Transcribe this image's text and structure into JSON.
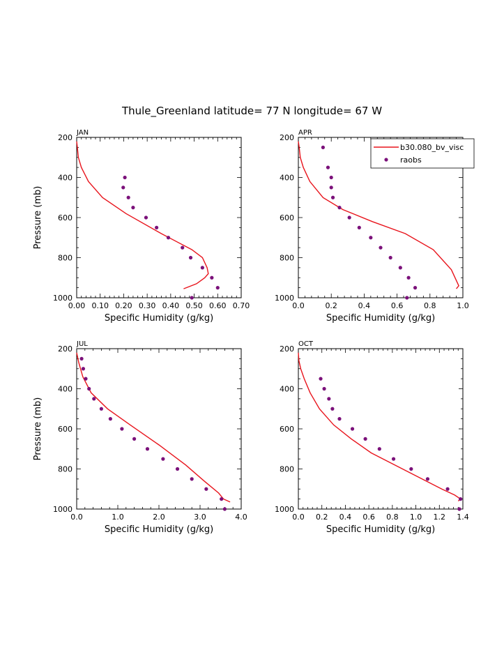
{
  "page_title": "Thule_Greenland  latitude= 77 N longitude= 67 W",
  "colors": {
    "model": "#e8141c",
    "obs": "#7b117a",
    "axis": "#000000"
  },
  "chart_data": [
    {
      "type": "line",
      "panel": "JAN",
      "title": "JAN",
      "xlabel": "Specific Humidity (g/kg)",
      "ylabel": "Pressure (mb)",
      "xlim": [
        0,
        0.7
      ],
      "ylim": [
        1000,
        200
      ],
      "xticks": [
        0,
        0.1,
        0.2,
        0.3,
        0.4,
        0.5,
        0.6,
        0.7
      ],
      "xtick_labels": [
        "0.00",
        "0.10",
        "0.20",
        "0.30",
        "0.40",
        "0.50",
        "0.60",
        "0.70"
      ],
      "yticks": [
        200,
        400,
        600,
        800,
        1000
      ],
      "ytick_labels": [
        "200",
        "400",
        "600",
        "800",
        "1000"
      ],
      "series": [
        {
          "name": "b30.080_bv_visc",
          "kind": "line",
          "x": [
            0.0,
            0.003,
            0.007,
            0.02,
            0.05,
            0.11,
            0.21,
            0.36,
            0.49,
            0.535,
            0.555,
            0.56,
            0.545,
            0.51,
            0.455
          ],
          "y": [
            220,
            250,
            300,
            350,
            420,
            500,
            580,
            680,
            760,
            800,
            850,
            880,
            900,
            930,
            955
          ]
        },
        {
          "name": "raobs",
          "kind": "scatter",
          "x": [
            0.205,
            0.198,
            0.22,
            0.24,
            0.295,
            0.34,
            0.39,
            0.45,
            0.485,
            0.535,
            0.575,
            0.6,
            0.49
          ],
          "y": [
            400,
            450,
            500,
            550,
            600,
            650,
            700,
            750,
            800,
            850,
            900,
            950,
            1000
          ]
        }
      ]
    },
    {
      "type": "line",
      "panel": "APR",
      "title": "APR",
      "xlabel": "Specific Humidity (g/kg)",
      "ylabel": "",
      "xlim": [
        0,
        1.0
      ],
      "ylim": [
        1000,
        200
      ],
      "xticks": [
        0,
        0.2,
        0.4,
        0.6,
        0.8,
        1.0
      ],
      "xtick_labels": [
        "0.0",
        "0.2",
        "0.4",
        "0.6",
        "0.8",
        "1.0"
      ],
      "yticks": [
        200,
        400,
        600,
        800,
        1000
      ],
      "ytick_labels": [
        "200",
        "400",
        "600",
        "800",
        "1000"
      ],
      "legend": {
        "position": "top-right",
        "entries": [
          "b30.080_bv_visc",
          "raobs"
        ]
      },
      "series": [
        {
          "name": "b30.080_bv_visc",
          "kind": "line",
          "x": [
            0.0,
            0.005,
            0.012,
            0.03,
            0.07,
            0.15,
            0.27,
            0.45,
            0.65,
            0.82,
            0.93,
            0.975,
            0.96
          ],
          "y": [
            220,
            250,
            300,
            350,
            420,
            500,
            560,
            620,
            680,
            760,
            860,
            940,
            955
          ]
        },
        {
          "name": "raobs",
          "kind": "scatter",
          "x": [
            0.15,
            0.18,
            0.2,
            0.2,
            0.21,
            0.25,
            0.31,
            0.37,
            0.44,
            0.5,
            0.56,
            0.62,
            0.67,
            0.71,
            0.66
          ],
          "y": [
            250,
            350,
            400,
            450,
            500,
            550,
            600,
            650,
            700,
            750,
            800,
            850,
            900,
            950,
            1000
          ]
        }
      ]
    },
    {
      "type": "line",
      "panel": "JUL",
      "title": "JUL",
      "xlabel": "Specific Humidity (g/kg)",
      "ylabel": "Pressure (mb)",
      "xlim": [
        0,
        4.0
      ],
      "ylim": [
        1000,
        200
      ],
      "xticks": [
        0,
        1,
        2,
        3,
        4
      ],
      "xtick_labels": [
        "0.0",
        "1.0",
        "2.0",
        "3.0",
        "4.0"
      ],
      "yticks": [
        200,
        400,
        600,
        800,
        1000
      ],
      "ytick_labels": [
        "200",
        "400",
        "600",
        "800",
        "1000"
      ],
      "series": [
        {
          "name": "b30.080_bv_visc",
          "kind": "line",
          "x": [
            0.0,
            0.05,
            0.15,
            0.35,
            0.75,
            1.3,
            2.0,
            2.65,
            3.1,
            3.45,
            3.57,
            3.73
          ],
          "y": [
            220,
            270,
            340,
            420,
            500,
            580,
            680,
            780,
            860,
            920,
            950,
            965
          ]
        },
        {
          "name": "raobs",
          "kind": "scatter",
          "x": [
            0.12,
            0.16,
            0.22,
            0.3,
            0.42,
            0.6,
            0.82,
            1.1,
            1.4,
            1.72,
            2.1,
            2.45,
            2.8,
            3.15,
            3.52,
            3.6
          ],
          "y": [
            250,
            300,
            350,
            400,
            450,
            500,
            550,
            600,
            650,
            700,
            750,
            800,
            850,
            900,
            950,
            1000
          ]
        }
      ]
    },
    {
      "type": "line",
      "panel": "OCT",
      "title": "OCT",
      "xlabel": "Specific Humidity (g/kg)",
      "ylabel": "",
      "xlim": [
        0,
        1.4
      ],
      "ylim": [
        1000,
        200
      ],
      "xticks": [
        0,
        0.2,
        0.4,
        0.6,
        0.8,
        1.0,
        1.2,
        1.4
      ],
      "xtick_labels": [
        "0.0",
        "0.2",
        "0.4",
        "0.6",
        "0.8",
        "1.0",
        "1.2",
        "1.4"
      ],
      "yticks": [
        200,
        400,
        600,
        800,
        1000
      ],
      "ytick_labels": [
        "200",
        "400",
        "600",
        "800",
        "1000"
      ],
      "series": [
        {
          "name": "b30.080_bv_visc",
          "kind": "line",
          "x": [
            0.0,
            0.005,
            0.02,
            0.05,
            0.1,
            0.18,
            0.3,
            0.45,
            0.62,
            0.82,
            1.02,
            1.22,
            1.33,
            1.38,
            1.36
          ],
          "y": [
            220,
            260,
            300,
            350,
            420,
            500,
            580,
            650,
            720,
            780,
            840,
            900,
            930,
            950,
            960
          ]
        },
        {
          "name": "raobs",
          "kind": "scatter",
          "x": [
            0.19,
            0.22,
            0.26,
            0.29,
            0.35,
            0.46,
            0.57,
            0.69,
            0.81,
            0.96,
            1.1,
            1.27,
            1.38,
            1.37
          ],
          "y": [
            350,
            400,
            450,
            500,
            550,
            600,
            650,
            700,
            750,
            800,
            850,
            900,
            950,
            1000
          ]
        }
      ]
    }
  ]
}
